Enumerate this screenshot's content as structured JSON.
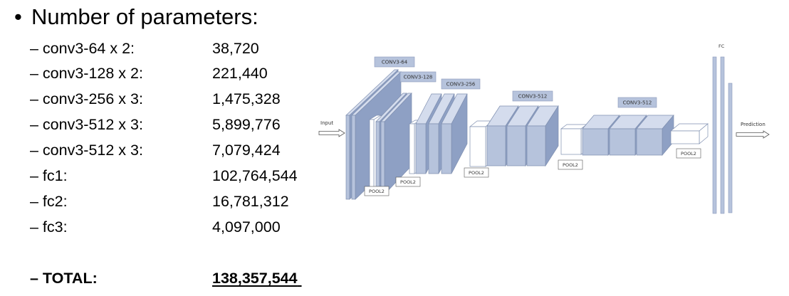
{
  "title": {
    "bullet": "•",
    "text": "Number of parameters:"
  },
  "rows": [
    {
      "label": "– conv3-64 x 2:",
      "value": "38,720"
    },
    {
      "label": "– conv3-128 x 2:",
      "value": "221,440"
    },
    {
      "label": "– conv3-256 x 3:",
      "value": "1,475,328"
    },
    {
      "label": "– conv3-512 x 3:",
      "value": "5,899,776"
    },
    {
      "label": "– conv3-512 x 3:",
      "value": "7,079,424"
    },
    {
      "label": "– fc1:",
      "value": "102,764,544"
    },
    {
      "label": "– fc2:",
      "value": "16,781,312"
    },
    {
      "label": "– fc3:",
      "value": "4,097,000"
    }
  ],
  "total": {
    "label": "– TOTAL:",
    "value": "138,357,544"
  },
  "diagram": {
    "input_label": "Input",
    "prediction_label": "Prediction",
    "fc_label": "FC",
    "conv_labels": [
      "CONV3-64",
      "CONV3-128",
      "CONV3-256",
      "CONV3-512",
      "CONV3-512"
    ],
    "pool_labels": [
      "POOL2",
      "POOL2",
      "POOL2",
      "POOL2",
      "POOL2"
    ],
    "colors": {
      "block_face": "#b6c3dc",
      "block_top": "#d4dced",
      "block_side": "#8ea0c4",
      "pool_face": "#ffffff",
      "pool_stroke": "#7f8fb0",
      "tag_fill": "#b6c3dc"
    }
  }
}
